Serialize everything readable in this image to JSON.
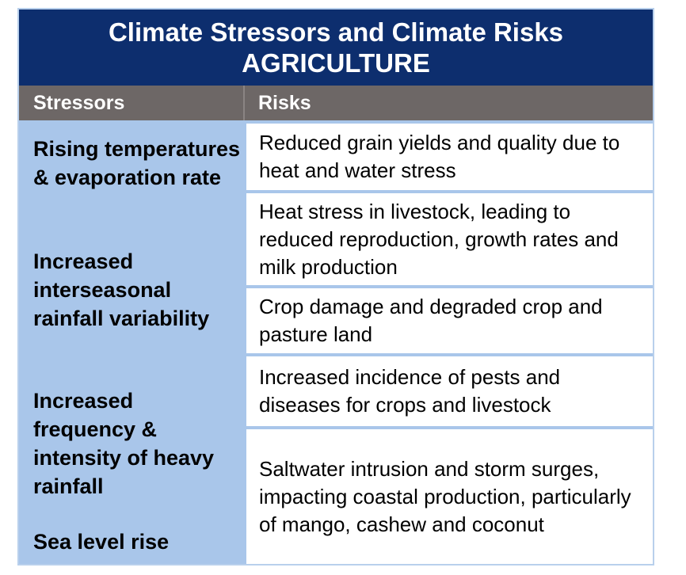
{
  "title": {
    "line1": "Climate Stressors and Climate Risks",
    "line2": "AGRICULTURE"
  },
  "headers": {
    "stressors": "Stressors",
    "risks": "Risks"
  },
  "stressors": [
    "Rising temperatures & evaporation rate",
    "Increased interseasonal rainfall variability",
    "Increased frequency & intensity of heavy rainfall",
    "Sea level rise"
  ],
  "risks": [
    "Reduced grain yields and quality due to heat and water stress",
    "Heat stress in livestock, leading to reduced reproduction, growth rates and milk production",
    "Crop damage and degraded crop and pasture land",
    "Increased incidence of pests and diseases for crops and livestock",
    "Saltwater intrusion and storm surges, impacting coastal production, particularly of mango, cashew and coconut"
  ],
  "colors": {
    "title_bg": "#0d2e6e",
    "header_bg": "#6d6766",
    "stressor_bg": "#a9c6ea"
  }
}
